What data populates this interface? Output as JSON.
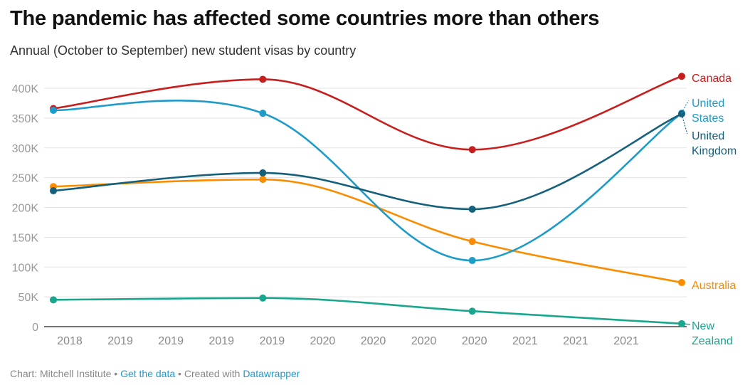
{
  "title": "The pandemic has affected some countries more than others",
  "subtitle": "Annual (October to September) new student visas by country",
  "footer": {
    "prefix": "Chart: Mitchell Institute",
    "separator": " • ",
    "get_data_label": "Get the data",
    "created_with": "Created with",
    "datawrapper_label": "Datawrapper"
  },
  "chart_data": {
    "type": "line",
    "title": "The pandemic has affected some countries more than others",
    "subtitle": "Annual (October to September) new student visas by country",
    "xlabel": "",
    "ylabel": "",
    "ylim": [
      0,
      400000
    ],
    "y_ticks": [
      0,
      50000,
      100000,
      150000,
      200000,
      250000,
      300000,
      350000,
      400000
    ],
    "y_tick_labels": [
      "0",
      "50K",
      "100K",
      "150K",
      "200K",
      "250K",
      "300K",
      "350K",
      "400K"
    ],
    "x_tick_labels": [
      "2018",
      "2019",
      "2019",
      "2019",
      "2019",
      "2020",
      "2020",
      "2020",
      "2020",
      "2021",
      "2021",
      "2021"
    ],
    "x": [
      "2018-19",
      "2019-20",
      "2020-21",
      "2021-22"
    ],
    "grid": true,
    "legend": "direct labels at right",
    "series": [
      {
        "name": "Canada",
        "label_lines": [
          "Canada"
        ],
        "color": "#c71e1d",
        "values": [
          366000,
          415000,
          297000,
          420000
        ]
      },
      {
        "name": "United States",
        "label_lines": [
          "United",
          "States"
        ],
        "color": "#1d9bc9",
        "values": [
          363000,
          358000,
          111000,
          358000
        ]
      },
      {
        "name": "United Kingdom",
        "label_lines": [
          "United",
          "Kingdom"
        ],
        "color": "#15607a",
        "values": [
          228000,
          258000,
          197000,
          357000
        ]
      },
      {
        "name": "Australia",
        "label_lines": [
          "Australia"
        ],
        "color": "#fa8c00",
        "values": [
          235000,
          247000,
          143000,
          74000
        ]
      },
      {
        "name": "New Zealand",
        "label_lines": [
          "New",
          "Zealand"
        ],
        "color": "#18a78c",
        "values": [
          45000,
          48000,
          26000,
          5000
        ]
      }
    ]
  }
}
